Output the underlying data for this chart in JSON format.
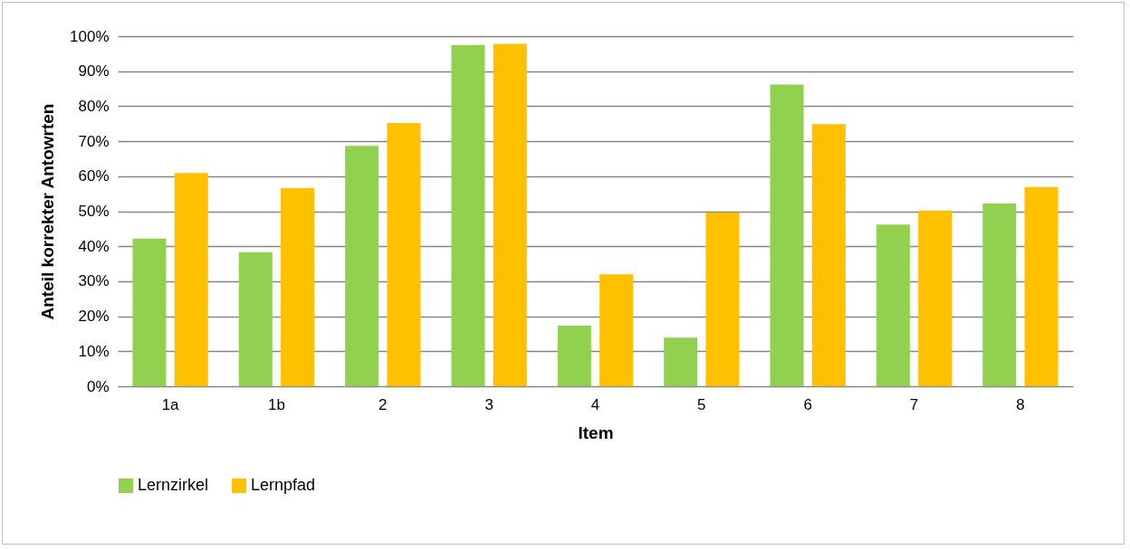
{
  "chart_data": {
    "type": "bar",
    "xlabel": "Item",
    "ylabel": "Anteil korrekter Antowrten",
    "categories": [
      "1a",
      "1b",
      "2",
      "3",
      "4",
      "5",
      "6",
      "7",
      "8"
    ],
    "series": [
      {
        "name": "Lernzirkel",
        "color": "#92d050",
        "values": [
          42.2,
          38.3,
          68.7,
          97.5,
          17.3,
          13.9,
          86.2,
          46.2,
          52.2
        ]
      },
      {
        "name": "Lernpfad",
        "color": "#ffc000",
        "values": [
          60.9,
          56.6,
          75.2,
          97.8,
          32.0,
          49.6,
          74.9,
          50.2,
          56.9
        ]
      }
    ],
    "ylim": [
      0,
      100
    ],
    "yticks": [
      {
        "value": 0,
        "label": "0%"
      },
      {
        "value": 10,
        "label": "10%"
      },
      {
        "value": 20,
        "label": "20%"
      },
      {
        "value": 30,
        "label": "30%"
      },
      {
        "value": 40,
        "label": "40%"
      },
      {
        "value": 50,
        "label": "50%"
      },
      {
        "value": 60,
        "label": "60%"
      },
      {
        "value": 70,
        "label": "70%"
      },
      {
        "value": 80,
        "label": "80%"
      },
      {
        "value": 90,
        "label": "90%"
      },
      {
        "value": 100,
        "label": "100%"
      }
    ],
    "grid": "y",
    "legend": "bottom"
  }
}
